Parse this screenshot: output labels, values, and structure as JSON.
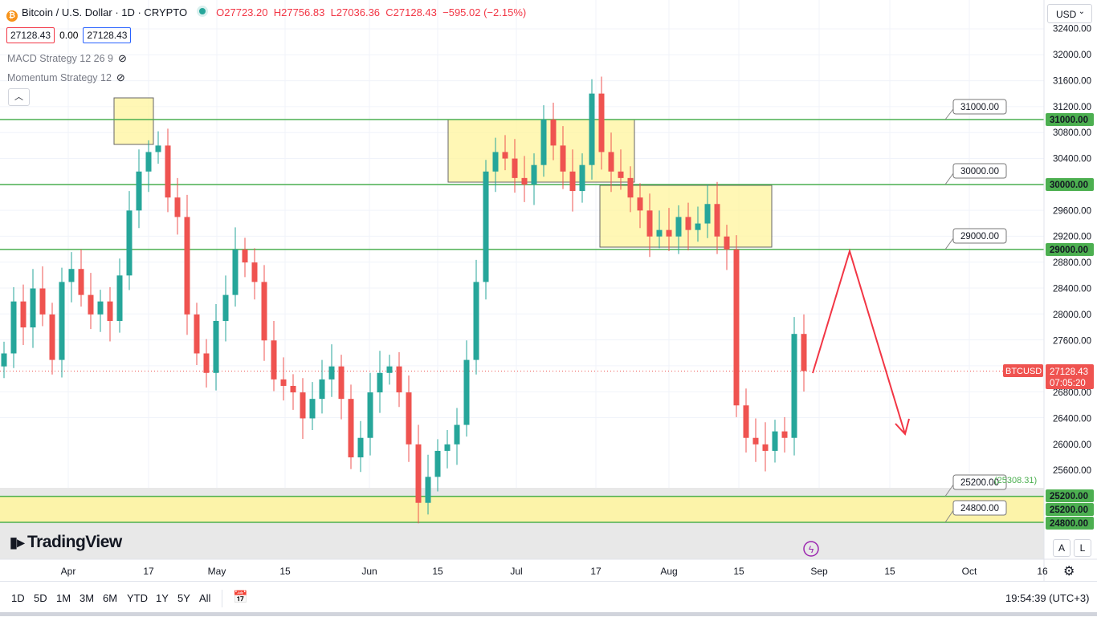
{
  "header": {
    "symbol_title": "Bitcoin / U.S. Dollar · 1D · CRYPTO",
    "coin_icon": "bitcoin-icon",
    "open": "O27723.20",
    "high": "H27756.83",
    "low": "L27036.36",
    "close": "C27128.43",
    "change": "−595.02 (−2.15%)",
    "bid": "27128.43",
    "spread": "0.00",
    "ask": "27128.43"
  },
  "indicators": [
    {
      "label": "MACD Strategy 12 26 9",
      "icon": "eye-crossed-icon"
    },
    {
      "label": "Momentum Strategy 12",
      "icon": "eye-crossed-icon"
    }
  ],
  "currency_select": "USD",
  "colors": {
    "up": "#26a69a",
    "down": "#ef5350",
    "level": "#4caf50",
    "zone": "#fff59d",
    "arrow": "#f23645"
  },
  "price_axis": {
    "ticks": [
      "32400.00",
      "32000.00",
      "31600.00",
      "31200.00",
      "30800.00",
      "30400.00",
      "29600.00",
      "29200.00",
      "28800.00",
      "28400.00",
      "28000.00",
      "27600.00",
      "26800.00",
      "26400.00",
      "26000.00",
      "25600.00"
    ],
    "level_labels": [
      "31000.00",
      "30000.00",
      "29000.00",
      "25200.00",
      "25200.00",
      "24800.00"
    ],
    "last_price": "27128.43",
    "countdown": "07:05:20",
    "symbol_tag": "BTCUSD"
  },
  "time_axis": [
    "Apr",
    "17",
    "May",
    "15",
    "Jun",
    "15",
    "Jul",
    "17",
    "Aug",
    "15",
    "Sep",
    "15",
    "Oct",
    "16"
  ],
  "chart_data": {
    "type": "candlestick",
    "symbol": "BTCUSD",
    "interval": "1D",
    "ylim": [
      24800,
      32500
    ],
    "horizontal_levels": [
      31000,
      30000,
      29000,
      25200,
      24800
    ],
    "level_callouts": [
      "31000.00",
      "30000.00",
      "29000.00",
      "25200.00",
      "24800.00"
    ],
    "partial_label": "(25308.31)",
    "last_close": 27128.43,
    "closes_approx": [
      27400,
      28200,
      27800,
      28400,
      28000,
      27300,
      28500,
      28700,
      28300,
      28000,
      28200,
      27900,
      28600,
      29600,
      30200,
      30500,
      30600,
      29800,
      29500,
      28000,
      27400,
      27100,
      27900,
      28300,
      29000,
      28800,
      28500,
      27600,
      27000,
      26900,
      26800,
      26400,
      26700,
      27000,
      27200,
      26700,
      25800,
      26100,
      26800,
      27100,
      27200,
      26800,
      26000,
      25100,
      25500,
      25900,
      26000,
      26300,
      27300,
      28500,
      30200,
      30500,
      30400,
      30100,
      30000,
      30300,
      31000,
      30600,
      30200,
      29900,
      30300,
      31400,
      30500,
      30200,
      30100,
      29800,
      29600,
      29200,
      29300,
      29200,
      29500,
      29300,
      29400,
      29700,
      29200,
      29000,
      26600,
      26100,
      26000,
      25900,
      26200,
      26100,
      27700,
      27128
    ]
  },
  "bottom_bar": {
    "ranges": [
      "1D",
      "5D",
      "1M",
      "3M",
      "6M",
      "YTD",
      "1Y",
      "5Y",
      "All"
    ],
    "clock": "19:54:39 (UTC+3)",
    "calendar_icon": "calendar-range-icon",
    "auto_scale": "A",
    "log_scale": "L",
    "settings_icon": "gear-icon"
  },
  "branding": {
    "logo": "TradingView"
  }
}
